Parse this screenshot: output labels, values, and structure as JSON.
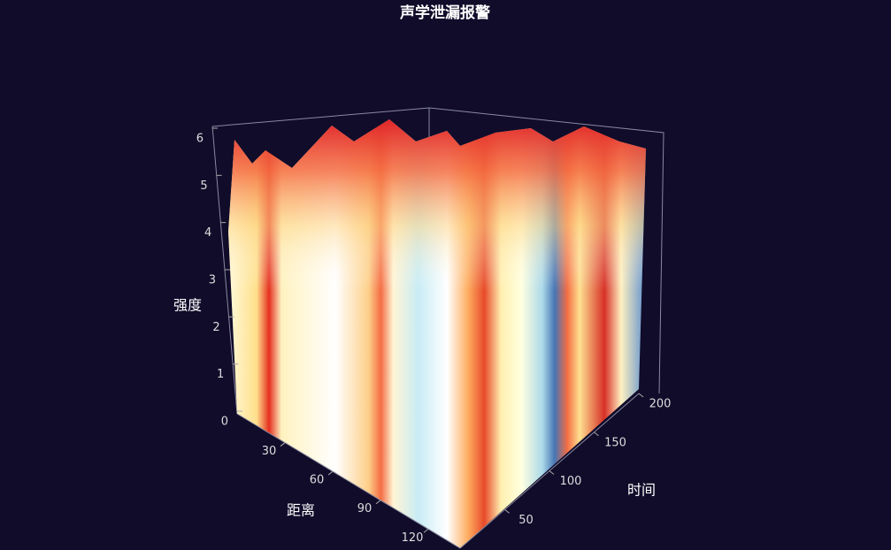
{
  "chart_data": {
    "type": "surface3d",
    "title": "声学泄漏报警",
    "x_name": "距离",
    "y_name": "时间",
    "z_name": "强度",
    "xlim": [
      0,
      140
    ],
    "xticks": [
      30,
      60,
      90,
      120
    ],
    "ylim": [
      0,
      200
    ],
    "yticks": [
      50,
      100,
      150,
      200
    ],
    "zlim": [
      0,
      6
    ],
    "zticks": [
      0,
      1,
      2,
      3,
      4,
      5,
      6
    ]
  }
}
